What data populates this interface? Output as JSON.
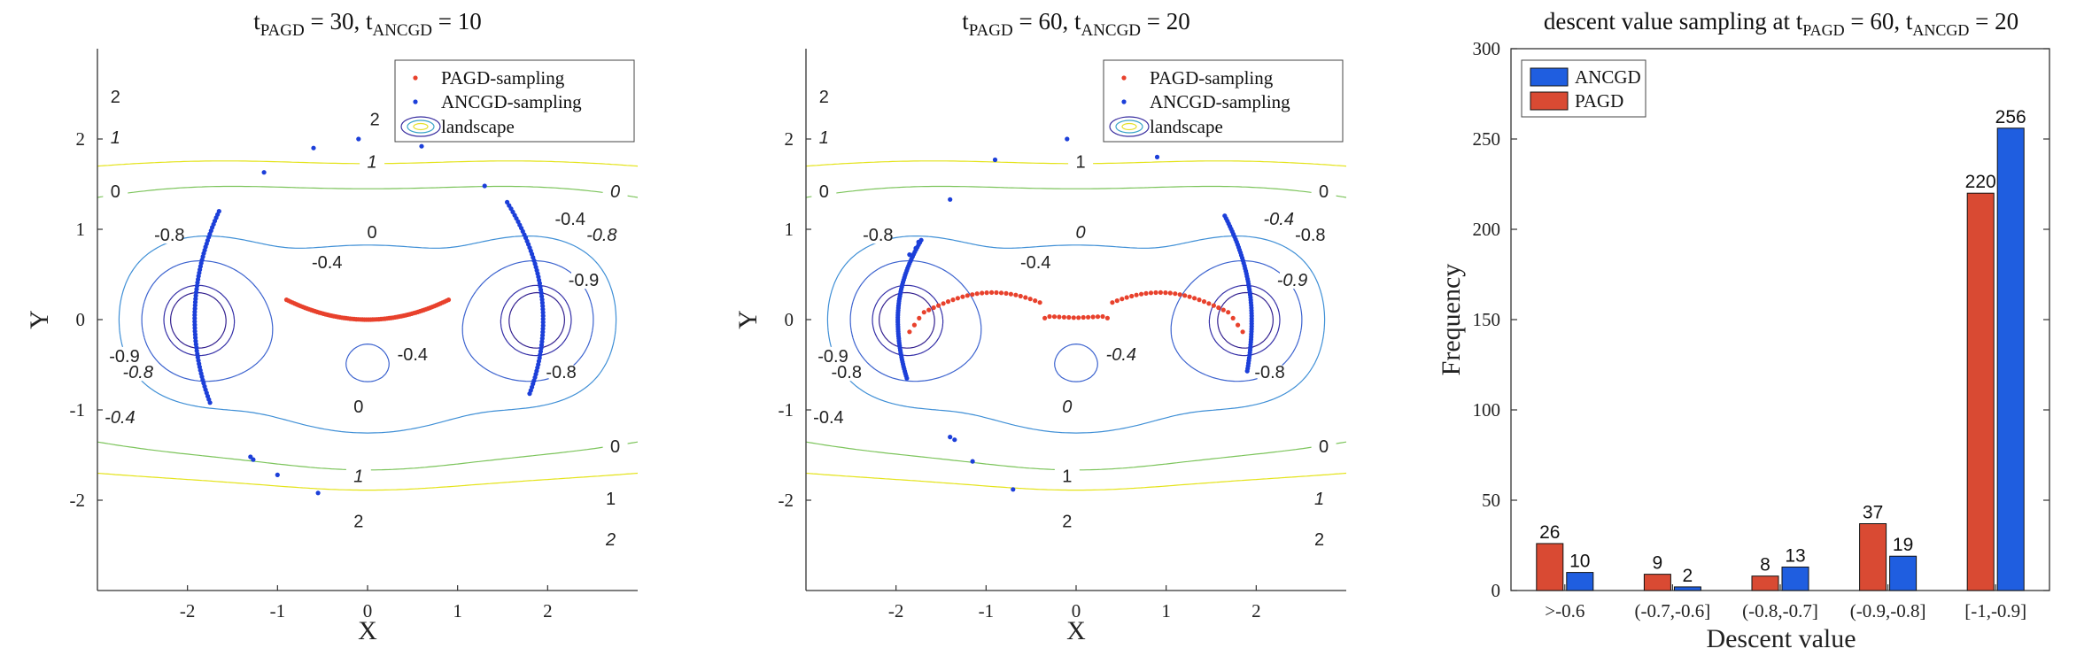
{
  "colors": {
    "pagd": "#e8412c",
    "ancgd": "#1c3fd9",
    "bar_pagd": "#d94a33",
    "bar_ancgd": "#1f5ee0"
  },
  "chart_data": [
    {
      "type": "contour",
      "title_prefix": "t",
      "title_sub1": "PAGD",
      "title_eq1": " = 30,   t",
      "title_sub2": "ANCGD",
      "title_eq2": " = 10",
      "xlabel": "X",
      "ylabel": "Y",
      "xlim": [
        -3,
        3
      ],
      "ylim": [
        -3,
        3
      ],
      "xticks": [
        "-2",
        "-1",
        "0",
        "1",
        "2"
      ],
      "yticks": [
        "-2",
        "-1",
        "0",
        "1",
        "2"
      ],
      "legend": [
        "PAGD-sampling",
        "ANCGD-sampling",
        "landscape"
      ],
      "contour_labels": [
        {
          "t": "2",
          "x": -2.8,
          "y": 2.45
        },
        {
          "t": "1",
          "x": -2.8,
          "y": 2.0
        },
        {
          "t": "0",
          "x": -2.8,
          "y": 1.4
        },
        {
          "t": "2",
          "x": 0.08,
          "y": 2.2
        },
        {
          "t": "1",
          "x": 0.05,
          "y": 1.73
        },
        {
          "t": "0",
          "x": 0.05,
          "y": 0.95
        },
        {
          "t": "-0.4",
          "x": -0.45,
          "y": 0.62
        },
        {
          "t": "0",
          "x": 2.75,
          "y": 1.4
        },
        {
          "t": "-0.4",
          "x": 2.25,
          "y": 1.1
        },
        {
          "t": "-0.8",
          "x": -2.2,
          "y": 0.92
        },
        {
          "t": "-0.8",
          "x": 2.6,
          "y": 0.92
        },
        {
          "t": "-0.9",
          "x": 2.4,
          "y": 0.42
        },
        {
          "t": "-0.9",
          "x": -2.7,
          "y": -0.42
        },
        {
          "t": "-0.8",
          "x": -2.55,
          "y": -0.6
        },
        {
          "t": "-0.4",
          "x": 0.5,
          "y": -0.4
        },
        {
          "t": "-0.8",
          "x": 2.15,
          "y": -0.6
        },
        {
          "t": "-0.4",
          "x": -2.75,
          "y": -1.1
        },
        {
          "t": "0",
          "x": -0.1,
          "y": -0.98
        },
        {
          "t": "0",
          "x": 2.75,
          "y": -1.42
        },
        {
          "t": "1",
          "x": -0.1,
          "y": -1.75
        },
        {
          "t": "1",
          "x": 2.7,
          "y": -2.0
        },
        {
          "t": "2",
          "x": -0.1,
          "y": -2.25
        },
        {
          "t": "2",
          "x": 2.7,
          "y": -2.45
        }
      ],
      "pagd_points": {
        "x_range": [
          -0.9,
          0.9
        ],
        "curve": "bowl"
      },
      "ancgd_arcs": [
        {
          "x_top": -1.65,
          "y_top": 1.2,
          "x_mid": -1.92,
          "y_mid": 0.0,
          "x_bot": -1.75,
          "y_bot": -0.92
        },
        {
          "x_top": 1.55,
          "y_top": 1.3,
          "x_mid": 1.95,
          "y_mid": 0.0,
          "x_bot": 1.8,
          "y_bot": -0.82
        }
      ],
      "ancgd_scatter": [
        {
          "x": -1.15,
          "y": 1.63
        },
        {
          "x": -0.6,
          "y": 1.9
        },
        {
          "x": -0.1,
          "y": 2.0
        },
        {
          "x": 0.6,
          "y": 1.92
        },
        {
          "x": 1.3,
          "y": 1.48
        },
        {
          "x": -1.3,
          "y": -1.52
        },
        {
          "x": -1.27,
          "y": -1.55
        },
        {
          "x": -1.0,
          "y": -1.72
        },
        {
          "x": -0.55,
          "y": -1.92
        }
      ]
    },
    {
      "type": "contour",
      "title_prefix": "t",
      "title_sub1": "PAGD",
      "title_eq1": " = 60,   t",
      "title_sub2": "ANCGD",
      "title_eq2": " = 20",
      "xlabel": "X",
      "ylabel": "Y",
      "xlim": [
        -3,
        3
      ],
      "ylim": [
        -3,
        3
      ],
      "xticks": [
        "-2",
        "-1",
        "0",
        "1",
        "2"
      ],
      "yticks": [
        "-2",
        "-1",
        "0",
        "1",
        "2"
      ],
      "legend": [
        "PAGD-sampling",
        "ANCGD-sampling",
        "landscape"
      ],
      "contour_labels": [
        {
          "t": "2",
          "x": -2.8,
          "y": 2.45
        },
        {
          "t": "1",
          "x": -2.8,
          "y": 2.0
        },
        {
          "t": "0",
          "x": -2.8,
          "y": 1.4
        },
        {
          "t": "1",
          "x": 0.05,
          "y": 1.73
        },
        {
          "t": "0",
          "x": 0.05,
          "y": 0.95
        },
        {
          "t": "-0.4",
          "x": -0.45,
          "y": 0.62
        },
        {
          "t": "0",
          "x": 2.75,
          "y": 1.4
        },
        {
          "t": "-0.4",
          "x": 2.25,
          "y": 1.1
        },
        {
          "t": "-0.8",
          "x": -2.2,
          "y": 0.92
        },
        {
          "t": "-0.8",
          "x": 2.6,
          "y": 0.92
        },
        {
          "t": "-0.9",
          "x": 2.4,
          "y": 0.42
        },
        {
          "t": "-0.9",
          "x": -2.7,
          "y": -0.42
        },
        {
          "t": "-0.8",
          "x": -2.55,
          "y": -0.6
        },
        {
          "t": "-0.4",
          "x": 0.5,
          "y": -0.4
        },
        {
          "t": "-0.8",
          "x": 2.15,
          "y": -0.6
        },
        {
          "t": "-0.4",
          "x": -2.75,
          "y": -1.1
        },
        {
          "t": "0",
          "x": -0.1,
          "y": -0.98
        },
        {
          "t": "0",
          "x": 2.75,
          "y": -1.42
        },
        {
          "t": "1",
          "x": -0.1,
          "y": -1.75
        },
        {
          "t": "1",
          "x": 2.7,
          "y": -2.0
        },
        {
          "t": "2",
          "x": -0.1,
          "y": -2.25
        },
        {
          "t": "2",
          "x": 2.7,
          "y": -2.45
        }
      ],
      "pagd_points": {
        "x_range": [
          -1.85,
          1.85
        ],
        "curve": "w"
      },
      "ancgd_arcs": [
        {
          "x_top": -1.72,
          "y_top": 0.88,
          "x_mid": -1.98,
          "y_mid": 0.0,
          "x_bot": -1.88,
          "y_bot": -0.65
        },
        {
          "x_top": 1.65,
          "y_top": 1.15,
          "x_mid": 1.95,
          "y_mid": 0.0,
          "x_bot": 1.9,
          "y_bot": -0.57
        }
      ],
      "ancgd_scatter": [
        {
          "x": -1.4,
          "y": 1.33
        },
        {
          "x": -0.9,
          "y": 1.77
        },
        {
          "x": -0.1,
          "y": 2.0
        },
        {
          "x": 0.9,
          "y": 1.8
        },
        {
          "x": -1.85,
          "y": 0.72
        },
        {
          "x": -1.78,
          "y": 0.79
        },
        {
          "x": -1.75,
          "y": 0.86
        },
        {
          "x": -1.4,
          "y": -1.3
        },
        {
          "x": -1.35,
          "y": -1.33
        },
        {
          "x": -1.15,
          "y": -1.57
        },
        {
          "x": -0.7,
          "y": -1.88
        }
      ]
    },
    {
      "type": "bar",
      "title_prefix": "descent value sampling at t",
      "title_sub1": "PAGD",
      "title_eq1": " = 60, t",
      "title_sub2": "ANCGD",
      "title_eq2": " = 20",
      "xlabel": "Descent value",
      "ylabel": "Frequency",
      "ylim": [
        0,
        300
      ],
      "yticks": [
        "0",
        "50",
        "100",
        "150",
        "200",
        "250",
        "300"
      ],
      "categories": [
        ">-0.6",
        "(-0.7,-0.6]",
        "(-0.8,-0.7]",
        "(-0.9,-0.8]",
        "[-1,-0.9]"
      ],
      "series": [
        {
          "name": "PAGD",
          "values": [
            26,
            9,
            8,
            37,
            220
          ]
        },
        {
          "name": "ANCGD",
          "values": [
            10,
            2,
            13,
            19,
            256
          ]
        }
      ],
      "legend": [
        "ANCGD",
        "PAGD"
      ]
    }
  ]
}
